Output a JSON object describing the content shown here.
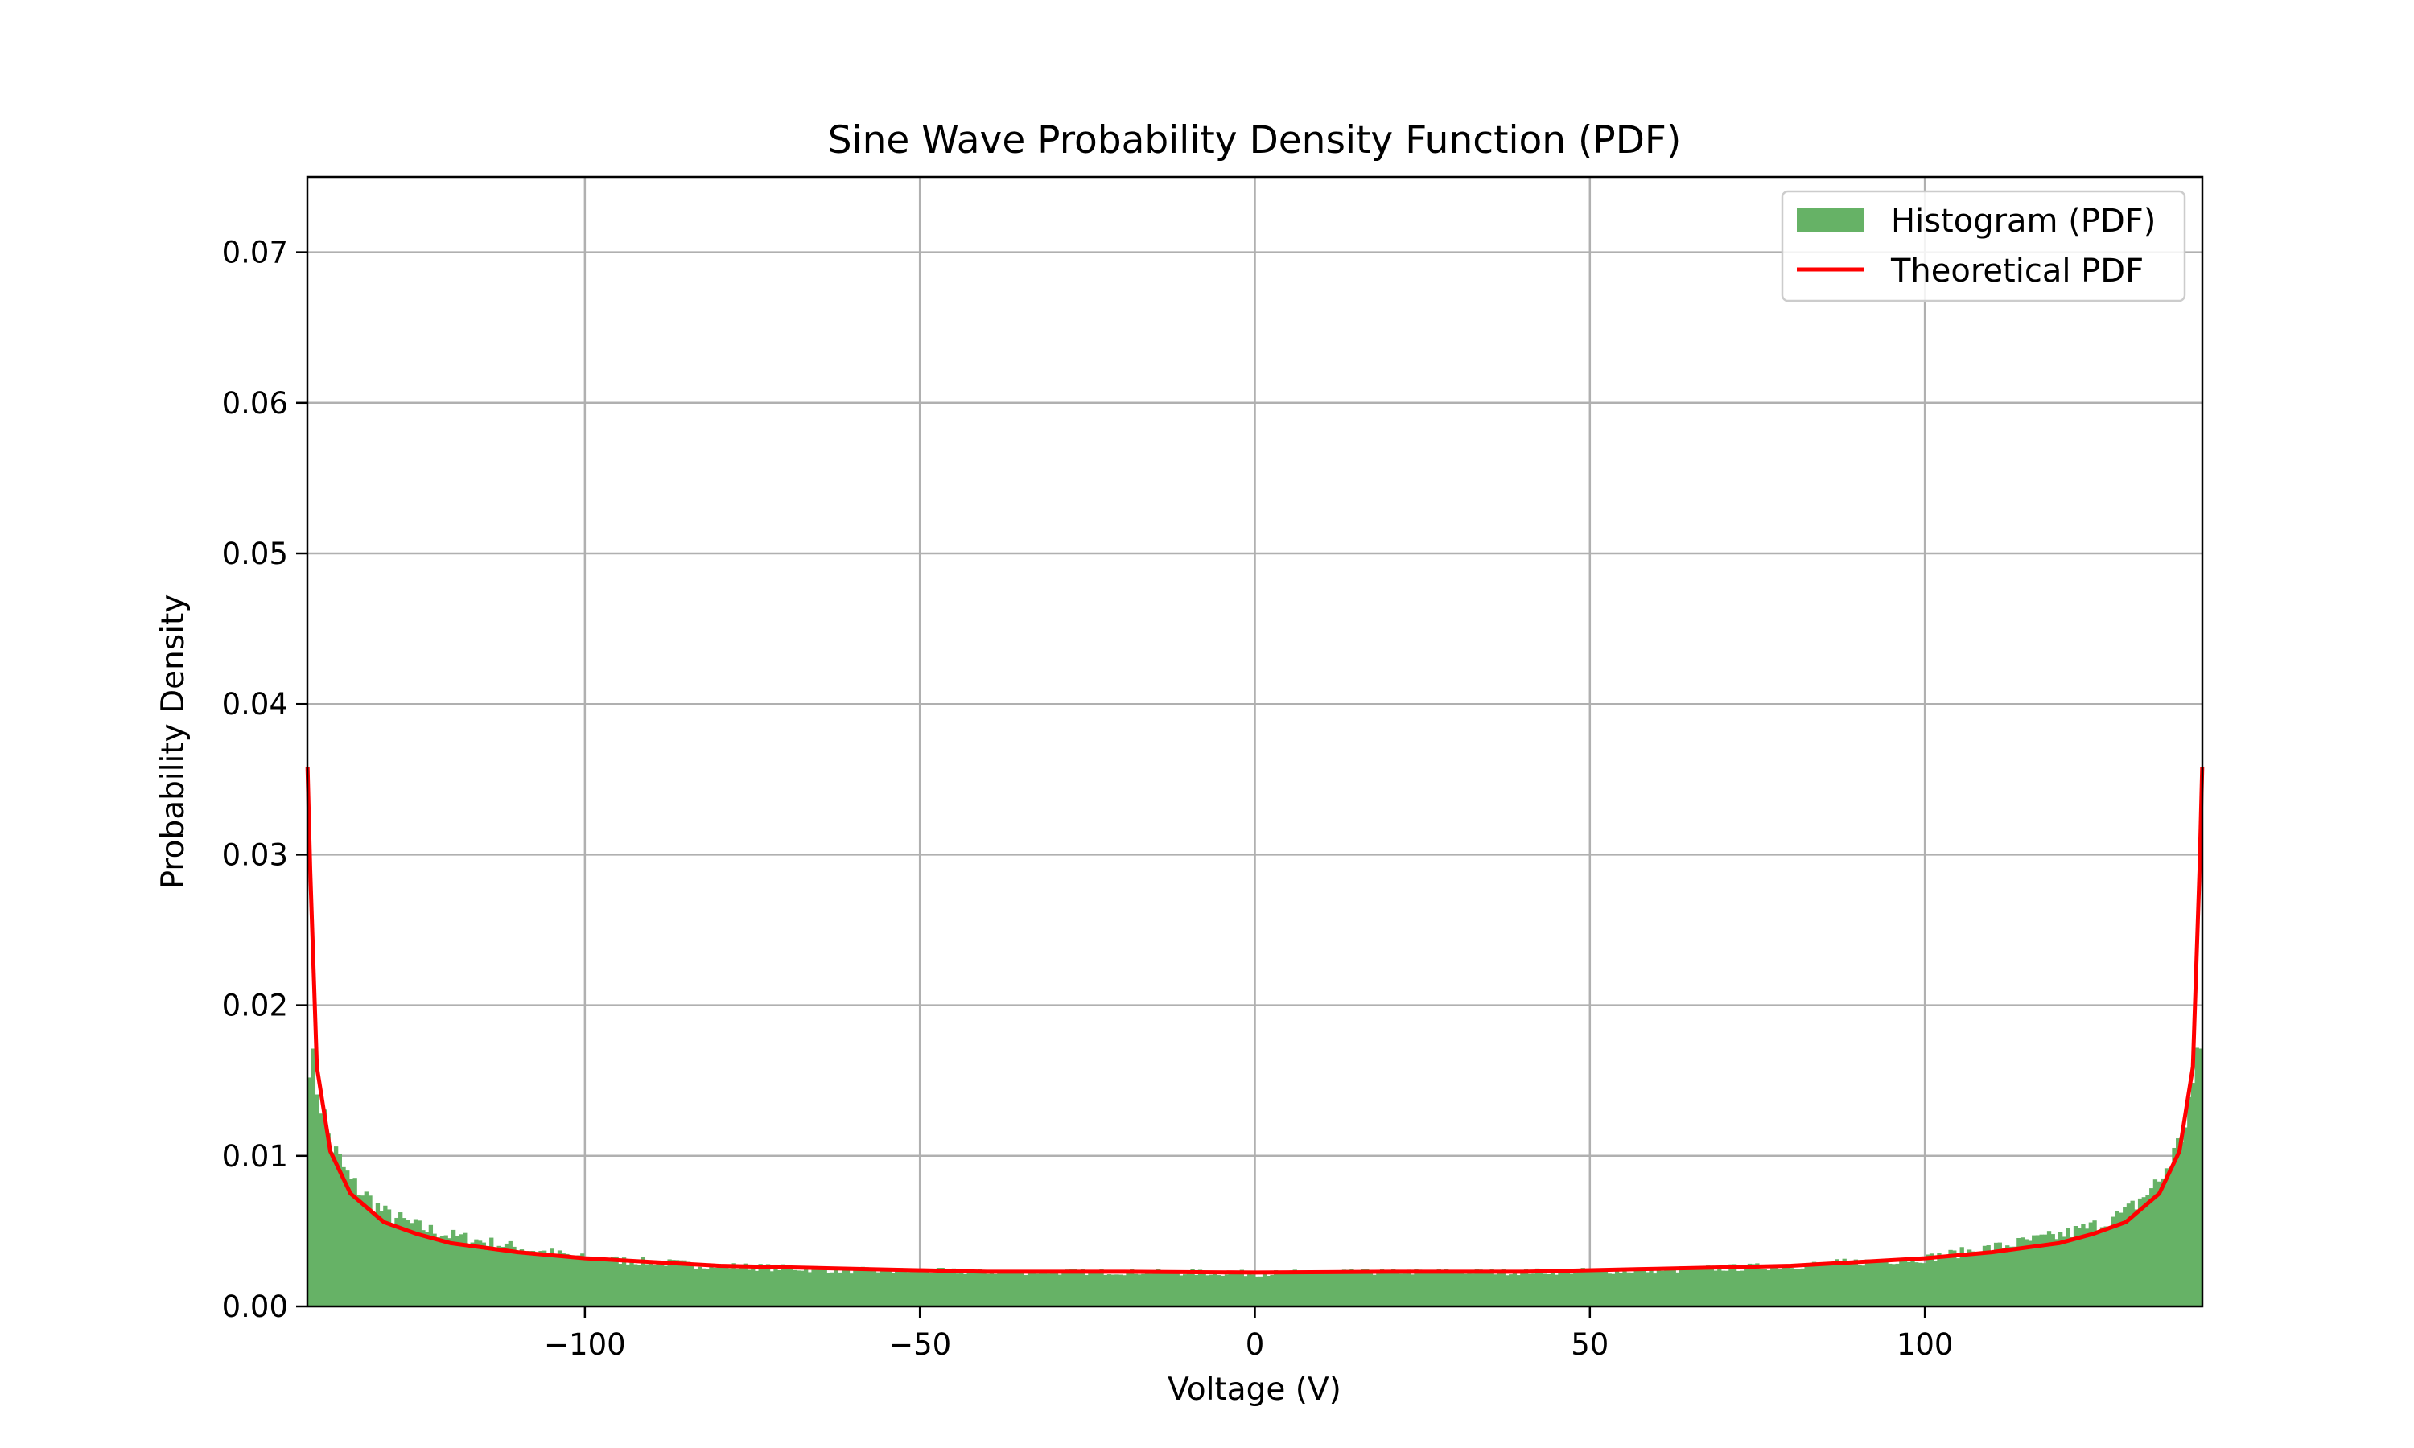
{
  "chart_data": {
    "type": "bar",
    "title": "Sine Wave Probability Density Function (PDF)",
    "xlabel": "Voltage (V)",
    "ylabel": "Probability Density",
    "xlim": [
      -141.42,
      141.42
    ],
    "ylim": [
      0,
      0.075
    ],
    "x_ticks": [
      -100,
      -50,
      0,
      50,
      100
    ],
    "x_tick_labels": [
      "−100",
      "−50",
      "0",
      "50",
      "100"
    ],
    "y_ticks": [
      0,
      0.01,
      0.02,
      0.03,
      0.04,
      0.05,
      0.06,
      0.07
    ],
    "y_tick_labels": [
      "0.00",
      "0.01",
      "0.02",
      "0.03",
      "0.04",
      "0.05",
      "0.06",
      "0.07"
    ],
    "grid": true,
    "legend_position": "top-right",
    "amplitude": 141.42,
    "series": [
      {
        "name": "Histogram (PDF)",
        "kind": "histogram",
        "color": "#66b266",
        "bins": 500,
        "x": [
          -141.4,
          -138.0,
          -135.0,
          -130.0,
          -125.0,
          -120.0,
          -110.0,
          -100.0,
          -80.0,
          -60.0,
          -40.0,
          -20.0,
          0.0,
          20.0,
          40.0,
          60.0,
          80.0,
          100.0,
          110.0,
          120.0,
          125.0,
          130.0,
          135.0,
          138.0,
          141.4
        ],
        "y": [
          0.0174,
          0.0108,
          0.0083,
          0.0062,
          0.0053,
          0.0047,
          0.0039,
          0.0032,
          0.0027,
          0.0024,
          0.0023,
          0.0023,
          0.0022,
          0.0023,
          0.0023,
          0.0024,
          0.0027,
          0.0032,
          0.0039,
          0.0047,
          0.0053,
          0.0062,
          0.0083,
          0.0108,
          0.0174
        ]
      },
      {
        "name": "Theoretical PDF",
        "kind": "line",
        "color": "#ff0000",
        "x": [
          -141.4,
          -141.0,
          -140.0,
          -138.0,
          -135.0,
          -130.0,
          -125.0,
          -120.0,
          -110.0,
          -100.0,
          -80.0,
          -60.0,
          -40.0,
          -20.0,
          0.0,
          20.0,
          40.0,
          60.0,
          80.0,
          100.0,
          110.0,
          120.0,
          125.0,
          130.0,
          135.0,
          138.0,
          140.0,
          141.0,
          141.4
        ],
        "y": [
          0.0358,
          0.029,
          0.0159,
          0.0103,
          0.0075,
          0.0056,
          0.0048,
          0.0042,
          0.0036,
          0.0032,
          0.0027,
          0.0025,
          0.0023,
          0.0023,
          0.00225,
          0.0023,
          0.0023,
          0.0025,
          0.0027,
          0.0032,
          0.0036,
          0.0042,
          0.0048,
          0.0056,
          0.0075,
          0.0103,
          0.0159,
          0.029,
          0.0358
        ]
      }
    ]
  }
}
